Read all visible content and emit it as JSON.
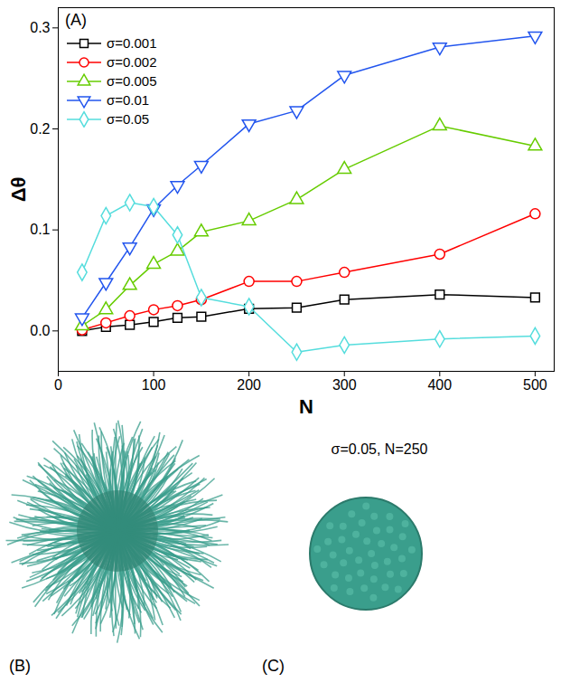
{
  "chart_data": {
    "type": "line",
    "panel_label": "(A)",
    "x_label": "N",
    "y_label": "Δθ",
    "x": [
      25,
      50,
      75,
      100,
      125,
      150,
      200,
      250,
      300,
      400,
      500
    ],
    "xlim": [
      0,
      520
    ],
    "ylim": [
      -0.04,
      0.32
    ],
    "xticks": [
      0,
      100,
      200,
      300,
      400,
      500
    ],
    "yticks": [
      {
        "value": 0,
        "label": "0.0"
      },
      0.1,
      0.2,
      0.3
    ],
    "legend": "upper left",
    "series": [
      {
        "name": "σ=0.001",
        "color": "#000000",
        "marker": "square",
        "values": [
          0.0,
          0.004,
          0.006,
          0.009,
          0.013,
          0.014,
          0.022,
          0.023,
          0.031,
          0.036,
          0.033
        ]
      },
      {
        "name": "σ=0.002",
        "color": "#ff0000",
        "marker": "circle",
        "values": [
          0.001,
          0.008,
          0.015,
          0.021,
          0.025,
          0.031,
          0.049,
          0.049,
          0.058,
          0.076,
          0.116
        ]
      },
      {
        "name": "σ=0.005",
        "color": "#66cc00",
        "marker": "triangle-up",
        "values": [
          0.005,
          0.021,
          0.045,
          0.066,
          0.079,
          0.098,
          0.109,
          0.13,
          0.16,
          0.203,
          0.183
        ]
      },
      {
        "name": "σ=0.01",
        "color": "#2255ee",
        "marker": "triangle-down",
        "values": [
          0.013,
          0.048,
          0.083,
          0.121,
          0.144,
          0.164,
          0.205,
          0.218,
          0.253,
          0.281,
          0.292
        ]
      },
      {
        "name": "σ=0.05",
        "color": "#55dddd",
        "marker": "diamond",
        "values": [
          0.058,
          0.114,
          0.127,
          0.123,
          0.095,
          0.033,
          0.024,
          -0.021,
          -0.014,
          -0.008,
          -0.005
        ]
      }
    ]
  },
  "panels": [
    {
      "label": "(B)"
    },
    {
      "label": "(C)",
      "caption": "σ=0.05, N=250"
    }
  ]
}
